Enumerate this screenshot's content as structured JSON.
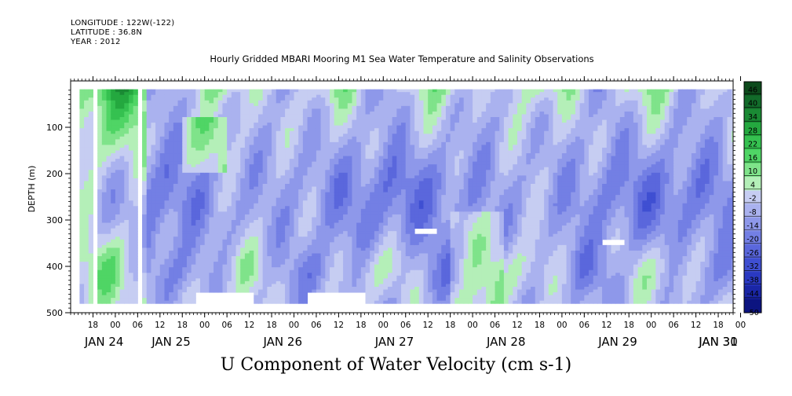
{
  "header": {
    "longitude": "LONGITUDE : 122W(-122)",
    "latitude": "LATITUDE : 36.8N",
    "year": "YEAR : 2012",
    "title": "Hourly Gridded MBARI Mooring M1 Sea Water Temperature and Salinity Observations"
  },
  "caption": "U Component of Water Velocity (cm s-1)",
  "chart_data": {
    "type": "heatmap",
    "title": "Hourly Gridded MBARI Mooring M1 Sea Water Temperature and Salinity Observations",
    "xlabel": "",
    "ylabel": "DEPTH (m)",
    "ylim": [
      500,
      0
    ],
    "y_ticks": [
      100,
      200,
      300,
      400,
      500
    ],
    "x_range_hours": [
      -12,
      166
    ],
    "x_hour_labels": [
      "18",
      "00",
      "06",
      "12",
      "18",
      "00",
      "06",
      "12",
      "18",
      "00",
      "06",
      "12",
      "18",
      "00",
      "06",
      "12",
      "18",
      "00",
      "06",
      "12",
      "18",
      "00",
      "06",
      "12",
      "18",
      "00",
      "06",
      "12",
      "18",
      "00"
    ],
    "x_day_labels": [
      "JAN 24",
      "JAN 25",
      "JAN 26",
      "JAN 27",
      "JAN 28",
      "JAN 29",
      "JAN 30",
      "JAN 31"
    ],
    "x_day_positions_hours": [
      -3,
      15,
      45,
      75,
      105,
      135,
      165,
      187
    ],
    "colorbar": {
      "levels": [
        46,
        40,
        34,
        28,
        22,
        16,
        10,
        4,
        -2,
        -8,
        -14,
        -20,
        -26,
        -32,
        -38,
        -44,
        -50
      ],
      "colors": [
        "#0d4a1c",
        "#126b2a",
        "#1a8a34",
        "#24a83f",
        "#35c150",
        "#4fd565",
        "#7fe38a",
        "#b4efb8",
        "#c6cdf2",
        "#aab2ef",
        "#8e98ea",
        "#737fe4",
        "#5a67dc",
        "#3f4fd2",
        "#2a39c2",
        "#1a26a6",
        "#0c1480"
      ]
    },
    "notes": "Hovmoller heatmap: depth (m) vs time, U component of water velocity in cm s-1; mostly -20 to +16 with green (positive) bands near the surface and blue (negative) cores around 200-300 m."
  }
}
